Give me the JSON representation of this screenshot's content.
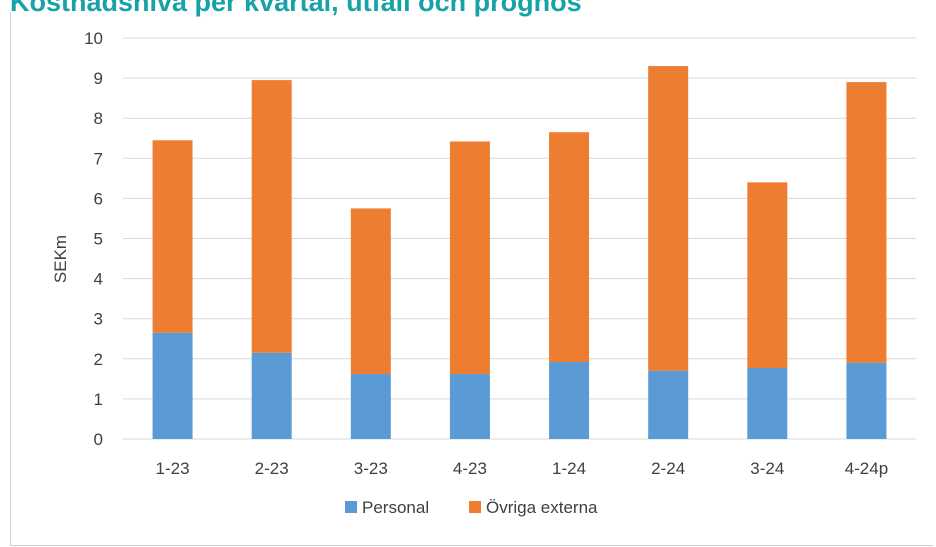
{
  "colors": {
    "title": "#17a2a8",
    "personal": "#5b9bd5",
    "ovriga": "#ed7d31",
    "grid": "#d9d9d9",
    "text": "#404040"
  },
  "chart_data": {
    "type": "bar",
    "stacked": true,
    "title": "Kostnadsnivå per kvartal, utfall och prognos",
    "xlabel": "",
    "ylabel": "SEKm",
    "ylim": [
      0,
      10
    ],
    "yticks": [
      0,
      1,
      2,
      3,
      4,
      5,
      6,
      7,
      8,
      9,
      10
    ],
    "grid": true,
    "legend_position": "bottom",
    "categories": [
      "1-23",
      "2-23",
      "3-23",
      "4-23",
      "1-24",
      "2-24",
      "3-24",
      "4-24p"
    ],
    "series": [
      {
        "name": "Personal",
        "color": "#5b9bd5",
        "values": [
          2.65,
          2.15,
          1.62,
          1.62,
          1.92,
          1.7,
          1.77,
          1.9
        ]
      },
      {
        "name": "Övriga externa",
        "color": "#ed7d31",
        "values": [
          4.8,
          6.8,
          4.13,
          5.8,
          5.73,
          7.6,
          4.63,
          7.0
        ]
      }
    ]
  }
}
